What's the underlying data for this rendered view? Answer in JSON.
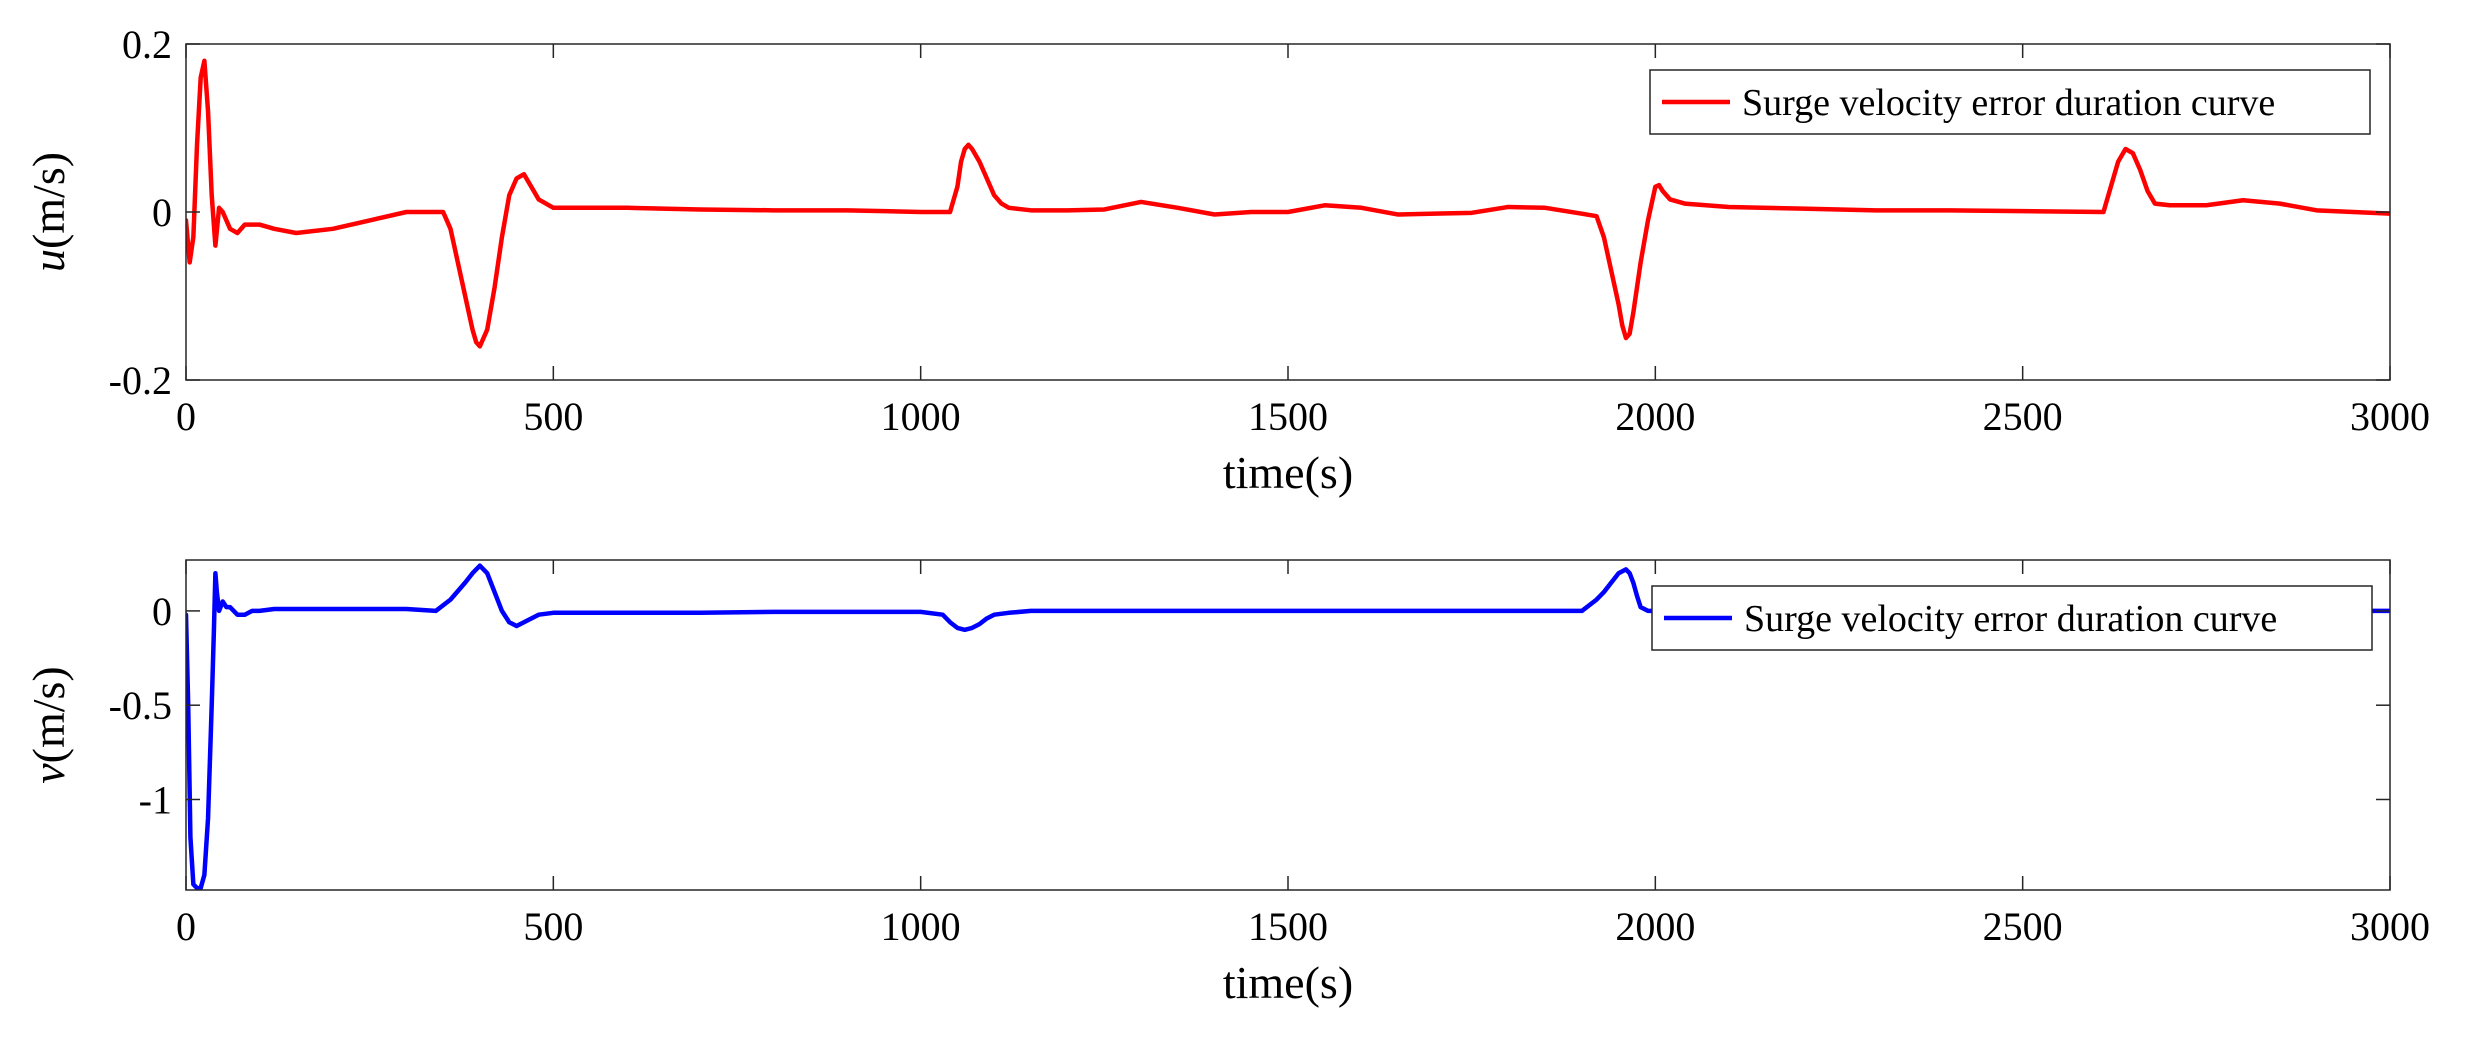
{
  "chart_data": [
    {
      "type": "line",
      "xlabel": "time(s)",
      "ylabel_symbol": "u",
      "ylabel_unit": "(m/s)",
      "xlim": [
        0,
        3000
      ],
      "ylim": [
        -0.2,
        0.2
      ],
      "xticks": [
        0,
        500,
        1000,
        1500,
        2000,
        2500,
        3000
      ],
      "yticks": [
        -0.2,
        0,
        0.2
      ],
      "ytick_labels": [
        "-0.2",
        "0",
        "0.2"
      ],
      "grid": false,
      "legend_position": "top-right",
      "series": [
        {
          "name": "Surge velocity error duration curve",
          "color": "#ff0000",
          "x": [
            0,
            5,
            10,
            15,
            20,
            25,
            30,
            35,
            40,
            45,
            50,
            60,
            70,
            80,
            90,
            100,
            120,
            150,
            200,
            250,
            300,
            330,
            350,
            360,
            370,
            380,
            390,
            395,
            400,
            410,
            420,
            430,
            440,
            450,
            460,
            470,
            480,
            500,
            600,
            700,
            800,
            900,
            1000,
            1040,
            1050,
            1055,
            1060,
            1065,
            1070,
            1080,
            1090,
            1100,
            1110,
            1120,
            1150,
            1200,
            1250,
            1300,
            1350,
            1400,
            1450,
            1500,
            1550,
            1600,
            1650,
            1700,
            1750,
            1800,
            1850,
            1900,
            1920,
            1930,
            1940,
            1950,
            1955,
            1960,
            1965,
            1970,
            1980,
            1990,
            2000,
            2005,
            2010,
            2020,
            2040,
            2100,
            2200,
            2300,
            2400,
            2500,
            2610,
            2620,
            2630,
            2640,
            2650,
            2660,
            2670,
            2680,
            2700,
            2750,
            2800,
            2850,
            2900,
            2950,
            3000
          ],
          "y": [
            -0.01,
            -0.06,
            -0.03,
            0.08,
            0.16,
            0.18,
            0.12,
            0.02,
            -0.04,
            0.005,
            0.0,
            -0.02,
            -0.025,
            -0.015,
            -0.015,
            -0.015,
            -0.02,
            -0.025,
            -0.02,
            -0.01,
            0.0,
            0.0,
            0.0,
            -0.02,
            -0.06,
            -0.1,
            -0.14,
            -0.155,
            -0.16,
            -0.14,
            -0.09,
            -0.03,
            0.02,
            0.04,
            0.045,
            0.03,
            0.015,
            0.005,
            0.005,
            0.003,
            0.002,
            0.002,
            0.0,
            0.0,
            0.03,
            0.06,
            0.075,
            0.08,
            0.075,
            0.06,
            0.04,
            0.02,
            0.01,
            0.005,
            0.002,
            0.002,
            0.003,
            0.012,
            0.005,
            -0.003,
            0.0,
            0.0,
            0.008,
            0.005,
            -0.003,
            -0.002,
            -0.001,
            0.006,
            0.005,
            -0.002,
            -0.005,
            -0.03,
            -0.07,
            -0.11,
            -0.135,
            -0.15,
            -0.145,
            -0.12,
            -0.06,
            -0.01,
            0.03,
            0.032,
            0.025,
            0.015,
            0.01,
            0.006,
            0.004,
            0.002,
            0.002,
            0.001,
            0.0,
            0.03,
            0.06,
            0.075,
            0.07,
            0.05,
            0.025,
            0.01,
            0.008,
            0.008,
            0.014,
            0.01,
            0.002,
            0.0,
            -0.002
          ]
        }
      ]
    },
    {
      "type": "line",
      "xlabel": "time(s)",
      "ylabel_symbol": "v",
      "ylabel_unit": "(m/s)",
      "xlim": [
        0,
        3000
      ],
      "ylim": [
        -1.48,
        0.27
      ],
      "xticks": [
        0,
        500,
        1000,
        1500,
        2000,
        2500,
        3000
      ],
      "yticks": [
        -1,
        -0.5,
        0
      ],
      "ytick_labels": [
        "-1",
        "-0.5",
        "0"
      ],
      "grid": false,
      "legend_position": "top-right",
      "series": [
        {
          "name": "Surge velocity error duration curve",
          "color": "#0000ff",
          "x": [
            0,
            3,
            6,
            10,
            15,
            20,
            25,
            30,
            35,
            38,
            40,
            42,
            45,
            50,
            55,
            60,
            70,
            80,
            90,
            100,
            120,
            150,
            200,
            250,
            300,
            340,
            360,
            380,
            390,
            395,
            400,
            410,
            420,
            430,
            440,
            450,
            460,
            480,
            500,
            600,
            700,
            800,
            900,
            1000,
            1030,
            1040,
            1050,
            1060,
            1070,
            1080,
            1090,
            1100,
            1120,
            1150,
            1200,
            1300,
            1400,
            1500,
            1600,
            1700,
            1800,
            1900,
            1920,
            1930,
            1940,
            1950,
            1960,
            1965,
            1970,
            1975,
            1980,
            1990,
            2000,
            2020,
            2100,
            2200,
            2300,
            2400,
            2500,
            2600,
            2700,
            2800,
            2900,
            3000
          ],
          "y": [
            -0.02,
            -0.5,
            -1.2,
            -1.45,
            -1.47,
            -1.47,
            -1.4,
            -1.1,
            -0.5,
            -0.1,
            0.2,
            0.1,
            0.0,
            0.05,
            0.02,
            0.02,
            -0.02,
            -0.02,
            0.0,
            0.0,
            0.01,
            0.01,
            0.01,
            0.01,
            0.01,
            0.0,
            0.06,
            0.15,
            0.2,
            0.22,
            0.24,
            0.2,
            0.1,
            0.0,
            -0.06,
            -0.08,
            -0.06,
            -0.02,
            -0.01,
            -0.01,
            -0.01,
            -0.005,
            -0.005,
            -0.005,
            -0.02,
            -0.06,
            -0.09,
            -0.1,
            -0.09,
            -0.07,
            -0.04,
            -0.02,
            -0.01,
            0.0,
            0.0,
            0.0,
            0.0,
            0.0,
            0.0,
            0.0,
            0.0,
            0.0,
            0.06,
            0.1,
            0.15,
            0.2,
            0.22,
            0.2,
            0.15,
            0.08,
            0.02,
            0.0,
            0.0,
            0.0,
            0.0,
            0.0,
            0.0,
            0.0,
            0.0,
            0.0,
            0.0,
            0.0,
            0.0,
            0.0
          ]
        }
      ]
    }
  ]
}
